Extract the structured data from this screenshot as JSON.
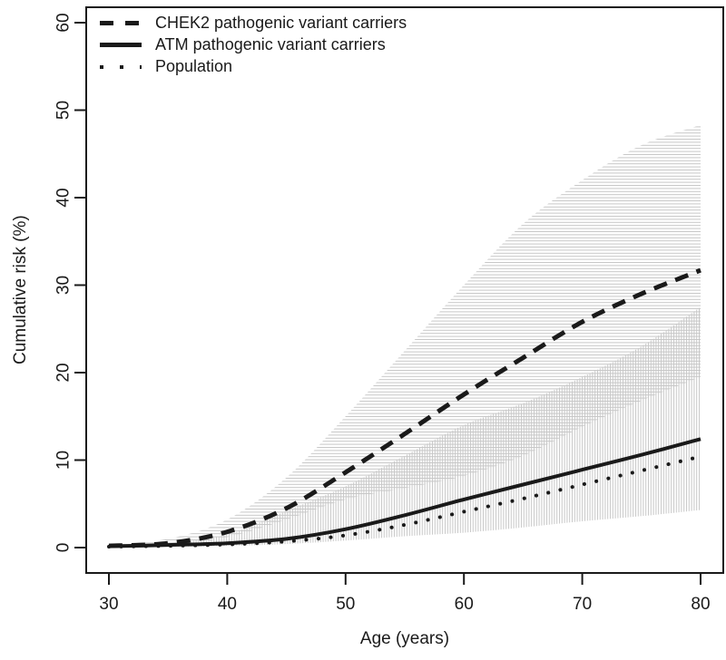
{
  "chart_data": {
    "type": "line",
    "title": "",
    "xlabel": "Age (years)",
    "ylabel": "Cumulative risk (%)",
    "xlim": [
      30,
      80
    ],
    "ylim": [
      0,
      60
    ],
    "xticks": [
      30,
      40,
      50,
      60,
      70,
      80
    ],
    "yticks": [
      0,
      10,
      20,
      30,
      40,
      50,
      60
    ],
    "grid": false,
    "legend_position": "top-left",
    "x": [
      30,
      35,
      40,
      45,
      50,
      55,
      60,
      65,
      70,
      75,
      80
    ],
    "series": [
      {
        "name": "CHEK2 pathogenic variant carriers",
        "style": "dashed",
        "values": [
          0.2,
          0.5,
          1.8,
          4.5,
          8.6,
          13.0,
          17.5,
          21.7,
          25.8,
          29.0,
          31.7
        ]
      },
      {
        "name": "ATM pathogenic variant carriers",
        "style": "solid",
        "values": [
          0.15,
          0.3,
          0.5,
          1.0,
          2.1,
          3.7,
          5.5,
          7.2,
          8.9,
          10.6,
          12.4
        ]
      },
      {
        "name": "Population",
        "style": "dotted",
        "values": [
          0.1,
          0.2,
          0.35,
          0.7,
          1.4,
          2.6,
          4.1,
          5.6,
          7.2,
          8.8,
          10.4
        ]
      }
    ],
    "confidence_bands": [
      {
        "series": "CHEK2 pathogenic variant carriers",
        "hatch": "horizontal",
        "upper": [
          0.3,
          1.0,
          3.2,
          8.0,
          15.0,
          22.5,
          30.0,
          37.0,
          42.0,
          46.0,
          48.3
        ],
        "lower": [
          0.15,
          0.35,
          1.2,
          3.2,
          5.5,
          6.8,
          8.2,
          10.5,
          13.8,
          16.8,
          19.5
        ]
      },
      {
        "series": "ATM pathogenic variant carriers",
        "hatch": "vertical",
        "upper": [
          0.2,
          0.5,
          1.5,
          4.2,
          7.0,
          10.5,
          14.0,
          16.5,
          19.5,
          23.0,
          27.5
        ],
        "lower": [
          0.05,
          0.1,
          0.2,
          0.4,
          0.8,
          1.3,
          1.7,
          2.3,
          3.0,
          3.6,
          4.3
        ]
      }
    ],
    "colors": {
      "line": "#1a1a1a",
      "hatch": "#c7c7c7",
      "axis": "#1a1a1a",
      "background": "#ffffff"
    }
  }
}
